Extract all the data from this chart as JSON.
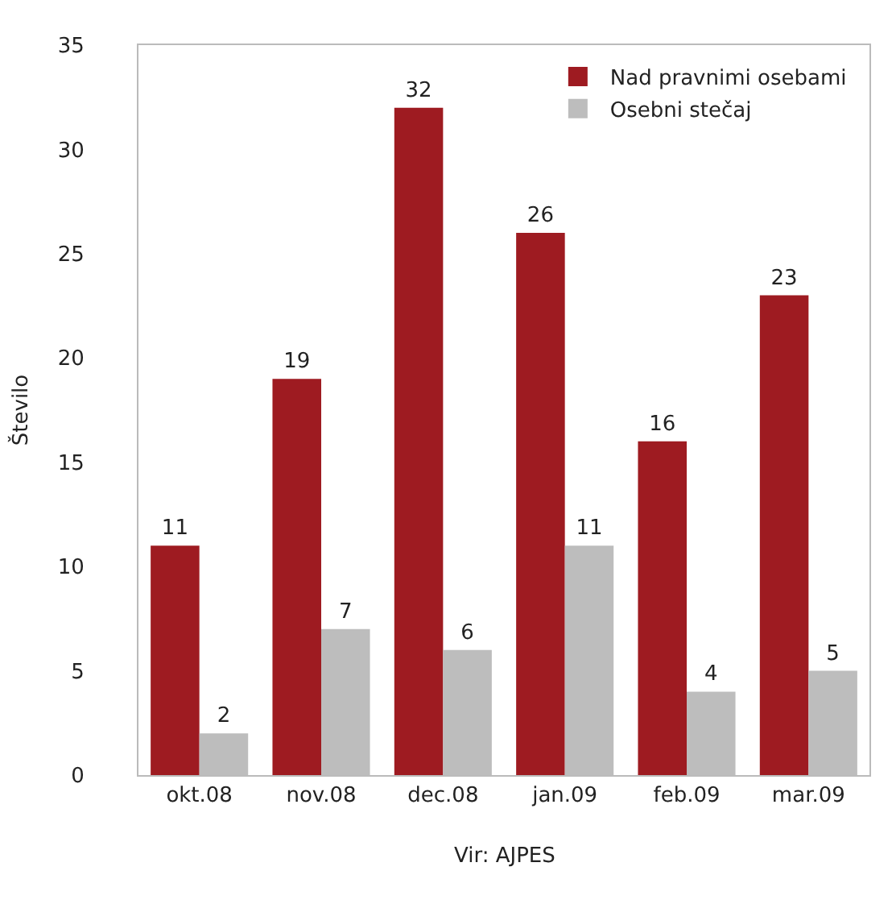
{
  "chart_data": {
    "type": "bar",
    "ylabel": "Število",
    "categories": [
      "okt.08",
      "nov.08",
      "dec.08",
      "jan.09",
      "feb.09",
      "mar.09"
    ],
    "series": [
      {
        "name": "Nad pravnimi osebami",
        "color": "#9e1b21",
        "values": [
          11,
          19,
          32,
          26,
          16,
          23
        ]
      },
      {
        "name": "Osebni stečaj",
        "color": "#bdbdbd",
        "values": [
          2,
          7,
          6,
          11,
          4,
          5
        ]
      }
    ],
    "ylim": [
      0,
      35
    ],
    "yticks": [
      0,
      5,
      10,
      15,
      20,
      25,
      30,
      35
    ],
    "legend": "top right",
    "data_labels": true,
    "annotations": [
      "Vir: AJPES"
    ]
  }
}
